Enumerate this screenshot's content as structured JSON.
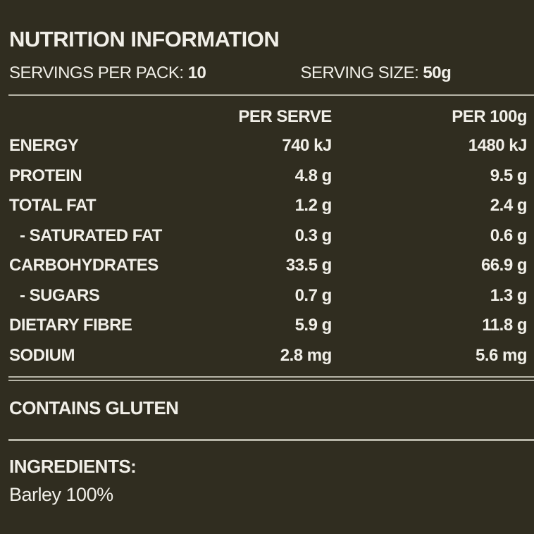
{
  "colors": {
    "background": "#302d20",
    "text": "#f1efe8",
    "divider": "#b7b5a8"
  },
  "header": {
    "title": "NUTRITION INFORMATION",
    "servings_label": "SERVINGS PER PACK: ",
    "servings_value": "10",
    "serving_size_label": "SERVING SIZE: ",
    "serving_size_value": "50g"
  },
  "table": {
    "columns": {
      "per_serve": "PER SERVE",
      "per_100g": "PER 100g"
    },
    "rows": [
      {
        "label": "ENERGY",
        "per_serve": "740 kJ",
        "per_100g": "1480 kJ",
        "indent": false
      },
      {
        "label": "PROTEIN",
        "per_serve": "4.8 g",
        "per_100g": "9.5 g",
        "indent": false
      },
      {
        "label": "TOTAL FAT",
        "per_serve": "1.2 g",
        "per_100g": "2.4 g",
        "indent": false
      },
      {
        "label": "- SATURATED FAT",
        "per_serve": "0.3 g",
        "per_100g": "0.6 g",
        "indent": true
      },
      {
        "label": "CARBOHYDRATES",
        "per_serve": "33.5 g",
        "per_100g": "66.9 g",
        "indent": false
      },
      {
        "label": "- SUGARS",
        "per_serve": "0.7 g",
        "per_100g": "1.3 g",
        "indent": true
      },
      {
        "label": "DIETARY FIBRE",
        "per_serve": "5.9 g",
        "per_100g": "11.8 g",
        "indent": false
      },
      {
        "label": "SODIUM",
        "per_serve": "2.8 mg",
        "per_100g": "5.6 mg",
        "indent": false
      }
    ]
  },
  "allergen": {
    "text": "CONTAINS GLUTEN"
  },
  "ingredients": {
    "heading": "INGREDIENTS:",
    "items": "Barley 100%"
  }
}
